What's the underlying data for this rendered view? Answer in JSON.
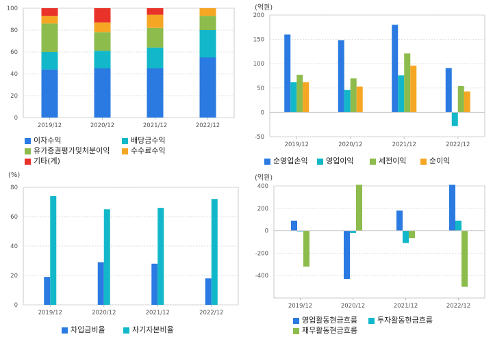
{
  "colors": {
    "blue": "#2a7ae2",
    "cyan": "#12b8c9",
    "green": "#8dbb4c",
    "orange": "#f5a623",
    "red": "#e8322a"
  },
  "chart_data": [
    {
      "id": "c1",
      "type": "bar",
      "stacked": true,
      "unit": "",
      "categories": [
        "2019/12",
        "2020/12",
        "2021/12",
        "2022/12"
      ],
      "ylim": [
        0,
        100
      ],
      "yticks": [
        0,
        20,
        40,
        60,
        80,
        100
      ],
      "grid": true,
      "legend": "bottom",
      "series": [
        {
          "name": "이자수익",
          "color": "#2a7ae2",
          "values": [
            44,
            45,
            45,
            55
          ]
        },
        {
          "name": "배당금수익",
          "color": "#12b8c9",
          "values": [
            16,
            16,
            19,
            25
          ]
        },
        {
          "name": "유가증권평가및처분이익",
          "color": "#8dbb4c",
          "values": [
            26,
            17,
            18,
            13
          ]
        },
        {
          "name": "수수료수익",
          "color": "#f5a623",
          "values": [
            7,
            9,
            12,
            7
          ]
        },
        {
          "name": "기타(계)",
          "color": "#e8322a",
          "values": [
            7,
            13,
            6,
            0
          ]
        }
      ]
    },
    {
      "id": "c2",
      "type": "bar",
      "stacked": false,
      "unit": "(억원)",
      "categories": [
        "2019/12",
        "2020/12",
        "2021/12",
        "2022/12"
      ],
      "ylim": [
        -50,
        200
      ],
      "yticks": [
        -50,
        0,
        50,
        100,
        150,
        200
      ],
      "grid": true,
      "legend": "bottom",
      "series": [
        {
          "name": "순영업손익",
          "color": "#2a7ae2",
          "values": [
            160,
            148,
            180,
            91
          ]
        },
        {
          "name": "영업이익",
          "color": "#12b8c9",
          "values": [
            62,
            46,
            76,
            -28
          ]
        },
        {
          "name": "세전이익",
          "color": "#8dbb4c",
          "values": [
            77,
            70,
            121,
            54
          ]
        },
        {
          "name": "순이익",
          "color": "#f5a623",
          "values": [
            62,
            53,
            96,
            43
          ]
        }
      ]
    },
    {
      "id": "c3",
      "type": "bar",
      "stacked": false,
      "unit": "(%)",
      "categories": [
        "2019/12",
        "2020/12",
        "2021/12",
        "2022/12"
      ],
      "ylim": [
        0,
        80
      ],
      "yticks": [
        0,
        20,
        40,
        60,
        80
      ],
      "grid": true,
      "legend": "bottom",
      "series": [
        {
          "name": "차입금비율",
          "color": "#2a7ae2",
          "values": [
            19,
            29,
            28,
            18
          ]
        },
        {
          "name": "자기자본비율",
          "color": "#12b8c9",
          "values": [
            74,
            65,
            66,
            72
          ]
        }
      ]
    },
    {
      "id": "c4",
      "type": "bar",
      "stacked": false,
      "unit": "(억원)",
      "categories": [
        "2019/12",
        "2020/12",
        "2021/12",
        "2022/12"
      ],
      "ylim": [
        -600,
        400
      ],
      "yticks": [
        -400,
        -200,
        0,
        200,
        400
      ],
      "grid": true,
      "legend": "bottom",
      "series": [
        {
          "name": "영업활동현금흐름",
          "color": "#2a7ae2",
          "values": [
            90,
            -430,
            180,
            410
          ]
        },
        {
          "name": "투자활동현금흐름",
          "color": "#12b8c9",
          "values": [
            -5,
            -20,
            -110,
            90
          ]
        },
        {
          "name": "재무활동현금흐름",
          "color": "#8dbb4c",
          "values": [
            -320,
            410,
            -65,
            -500
          ]
        }
      ]
    }
  ]
}
